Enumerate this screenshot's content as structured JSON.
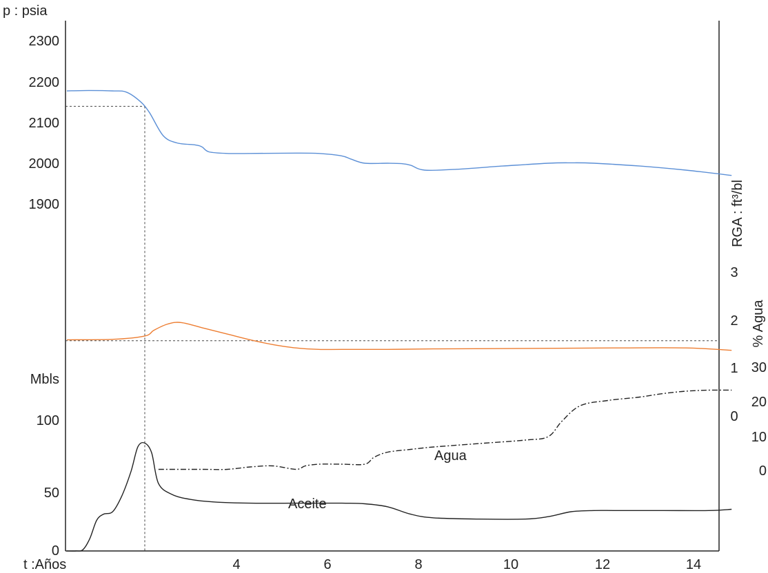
{
  "chart_data": {
    "type": "line",
    "title": "",
    "colors": {
      "pressure": "#5b8fd6",
      "rga": "#ed7d31",
      "oil": "#222222",
      "water": "#222222",
      "axis": "#222222",
      "reference": "#444444"
    },
    "x_axis": {
      "label": "t :Años",
      "ticks": [
        "4",
        "6",
        "8",
        "10",
        "12",
        "14"
      ],
      "range": [
        0.0,
        14.5
      ]
    },
    "left_top_axis": {
      "label": "p : psia",
      "ticks": [
        "2300",
        "2200",
        "2100",
        "2000",
        "1900"
      ]
    },
    "left_bottom_axis": {
      "label": "Mbls",
      "ticks": [
        "100",
        "50",
        "0"
      ]
    },
    "right_axis_rga": {
      "label": "RGA : ft³/bl",
      "ticks": [
        "3",
        "2",
        "1",
        "0"
      ]
    },
    "right_axis_water": {
      "label": "% Agua",
      "ticks": [
        "30",
        "20",
        "10",
        "0"
      ]
    },
    "annotations": {
      "water": "Agua",
      "oil": "Aceite"
    },
    "reference_lines": {
      "time": 1.7,
      "pressure": 2140,
      "rga": 1.6
    },
    "series": [
      {
        "key": "pressure",
        "axis": "pressure",
        "x": [
          0.0,
          0.5,
          1.0,
          1.3,
          1.6,
          1.8,
          2.1,
          2.4,
          2.8,
          2.95,
          3.1,
          3.5,
          4.0,
          5.0,
          5.5,
          6.0,
          6.2,
          6.5,
          7.0,
          7.3,
          7.5,
          7.8,
          8.5,
          9.5,
          10.5,
          11.0,
          11.5,
          12.5,
          13.5,
          14.5
        ],
        "y": [
          2178,
          2179,
          2178,
          2175,
          2152,
          2125,
          2068,
          2050,
          2045,
          2040,
          2028,
          2024,
          2024,
          2025,
          2024,
          2018,
          2010,
          2000,
          2000,
          1999,
          1995,
          1983,
          1985,
          1993,
          2000,
          2001,
          2000,
          1993,
          1983,
          1970
        ]
      },
      {
        "key": "rga",
        "axis": "rga",
        "x": [
          0.0,
          1.0,
          1.7,
          1.9,
          2.2,
          2.5,
          3.0,
          3.5,
          4.0,
          4.5,
          5.0,
          5.5,
          6.0,
          7.0,
          8.0,
          10.0,
          12.0,
          13.5,
          14.5
        ],
        "y": [
          1.62,
          1.63,
          1.7,
          1.82,
          1.95,
          1.98,
          1.86,
          1.74,
          1.62,
          1.52,
          1.45,
          1.42,
          1.42,
          1.42,
          1.43,
          1.44,
          1.45,
          1.45,
          1.4
        ]
      },
      {
        "key": "oil",
        "axis": "mbls",
        "x": [
          0.0,
          0.2,
          0.35,
          0.5,
          0.65,
          0.8,
          1.0,
          1.2,
          1.4,
          1.55,
          1.7,
          1.85,
          2.0,
          2.3,
          2.7,
          3.2,
          4.0,
          5.0,
          5.5,
          6.0,
          6.5,
          7.0,
          7.5,
          8.0,
          9.0,
          10.0,
          10.5,
          11.0,
          11.5,
          12.0,
          13.0,
          14.0,
          14.5
        ],
        "y": [
          0,
          0,
          1,
          10,
          25,
          30,
          32,
          45,
          65,
          85,
          88,
          80,
          55,
          46,
          42,
          40,
          39,
          39,
          39,
          39,
          38.5,
          36,
          30,
          27,
          26,
          26,
          28,
          32,
          33,
          33,
          33,
          33,
          34
        ]
      },
      {
        "key": "water",
        "axis": "water",
        "x": [
          2.0,
          2.5,
          3.0,
          3.5,
          4.0,
          4.5,
          5.0,
          5.2,
          5.5,
          6.0,
          6.5,
          6.7,
          7.0,
          7.5,
          8.0,
          9.0,
          10.0,
          10.5,
          10.8,
          11.2,
          11.8,
          12.5,
          13.0,
          13.5,
          14.0,
          14.5
        ],
        "y": [
          0.5,
          0.5,
          0.5,
          0.5,
          1.2,
          1.5,
          0.5,
          1.5,
          2.0,
          2.0,
          2.0,
          4.0,
          5.5,
          6.3,
          7.0,
          8.0,
          9.0,
          10.0,
          14.5,
          19.0,
          20.5,
          21.5,
          22.5,
          23.2,
          23.5,
          23.5
        ]
      }
    ]
  }
}
